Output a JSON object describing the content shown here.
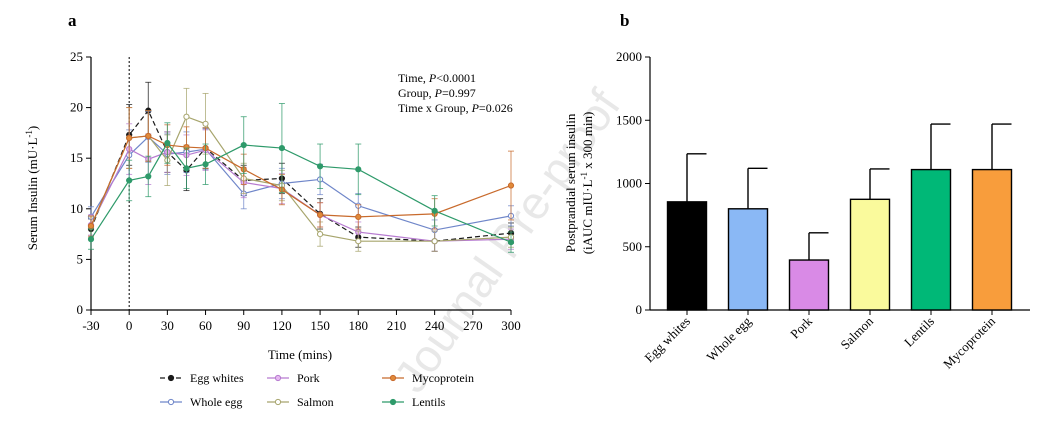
{
  "watermark": "Journal Pre-proof",
  "chart_data": [
    {
      "panel": "a",
      "type": "line",
      "xlabel": "Time (mins)",
      "ylabel": "Serum Insulin (mU·L-1)",
      "ylabel_main": "Serum Insulin (mU·L",
      "ylabel_sup": "-1",
      "ylabel_tail": ")",
      "xlim": [
        -30,
        300
      ],
      "ylim": [
        0,
        25
      ],
      "xticks": [
        "-30",
        "0",
        "30",
        "60",
        "90",
        "120",
        "150",
        "180",
        "210",
        "240",
        "270",
        "300"
      ],
      "yticks": [
        "0",
        "5",
        "10",
        "15",
        "20",
        "25"
      ],
      "vline_x": 0,
      "stats_lines": [
        {
          "pre": "Time, ",
          "ital": "P",
          "post": "<0.0001"
        },
        {
          "pre": "Group, ",
          "ital": "P",
          "post": "=0.997"
        },
        {
          "pre": "Time x Group, ",
          "ital": "P",
          "post": "=0.026"
        }
      ],
      "x": [
        -30,
        0,
        15,
        30,
        45,
        60,
        90,
        120,
        150,
        180,
        240,
        300
      ],
      "series": [
        {
          "name": "Egg whites",
          "color": "#1a1a1a",
          "fill": "#1a1a1a",
          "dash": "5,3",
          "values": [
            8.0,
            17.3,
            19.7,
            15.6,
            13.8,
            16.0,
            12.8,
            13.0,
            9.5,
            7.2,
            6.8,
            7.6
          ],
          "err": [
            1.0,
            3.0,
            2.8,
            2.0,
            2.0,
            2.0,
            1.5,
            1.5,
            1.5,
            1.0,
            1.0,
            1.0
          ]
        },
        {
          "name": "Whole egg",
          "color": "#6f86c9",
          "fill": "#ffffff",
          "dash": "",
          "values": [
            9.2,
            15.3,
            17.1,
            15.4,
            15.6,
            15.9,
            11.5,
            12.5,
            12.9,
            10.3,
            7.9,
            9.3
          ],
          "err": [
            1.0,
            2.5,
            2.5,
            2.0,
            2.0,
            2.0,
            1.5,
            1.5,
            1.5,
            1.2,
            1.0,
            1.0
          ]
        },
        {
          "name": "Pork",
          "color": "#b67ad0",
          "fill": "#e6b8f0",
          "dash": "",
          "values": [
            8.4,
            15.9,
            14.9,
            15.6,
            15.3,
            15.8,
            12.6,
            12.0,
            9.4,
            7.7,
            6.8,
            7.0
          ],
          "err": [
            1.0,
            2.5,
            2.5,
            2.0,
            2.0,
            2.0,
            1.5,
            1.5,
            1.2,
            1.0,
            1.0,
            1.0
          ]
        },
        {
          "name": "Salmon",
          "color": "#a7a56d",
          "fill": "#ffffff",
          "dash": "",
          "values": [
            8.2,
            17.0,
            17.2,
            14.8,
            19.1,
            18.4,
            13.0,
            12.3,
            7.5,
            6.8,
            6.8,
            7.2
          ],
          "err": [
            1.0,
            3.0,
            2.5,
            2.5,
            2.8,
            3.0,
            1.5,
            1.5,
            1.2,
            1.0,
            1.0,
            1.0
          ]
        },
        {
          "name": "Mycoprotein",
          "color": "#c86a2c",
          "fill": "#e08a3a",
          "dash": "",
          "values": [
            8.3,
            17.0,
            17.2,
            16.3,
            16.1,
            16.0,
            13.9,
            11.9,
            9.4,
            9.2,
            9.5,
            12.3
          ],
          "err": [
            1.0,
            3.0,
            2.5,
            2.0,
            2.0,
            2.0,
            1.5,
            1.5,
            1.2,
            1.2,
            1.5,
            3.4
          ]
        },
        {
          "name": "Lentils",
          "color": "#2e9a6a",
          "fill": "#2e9a6a",
          "dash": "",
          "values": [
            7.0,
            12.8,
            13.2,
            16.5,
            14.0,
            14.4,
            16.3,
            16.0,
            14.2,
            13.9,
            9.8,
            6.7
          ],
          "err": [
            1.0,
            2.0,
            2.0,
            2.0,
            2.0,
            2.0,
            2.8,
            4.4,
            2.2,
            2.5,
            1.5,
            1.0
          ]
        }
      ],
      "legend": {
        "rows": [
          [
            "Egg whites",
            "Pork",
            "Mycoprotein"
          ],
          [
            "Whole egg",
            "Salmon",
            "Lentils"
          ]
        ]
      }
    },
    {
      "panel": "b",
      "type": "bar",
      "ylabel_line1": "Postprandial serum insulin",
      "ylabel_line2_a": "(iAUC mIU·L",
      "ylabel_line2_sup": "-1",
      "ylabel_line2_b": " x 300 min)",
      "ylim": [
        0,
        2000
      ],
      "yticks": [
        "0",
        "500",
        "1000",
        "1500",
        "2000"
      ],
      "categories": [
        "Egg whites",
        "Whole egg",
        "Pork",
        "Salmon",
        "Lentils",
        "Mycoprotein"
      ],
      "values": [
        855,
        800,
        395,
        875,
        1110,
        1110
      ],
      "err": [
        380,
        320,
        215,
        240,
        360,
        360
      ],
      "colors": [
        "#000000",
        "#8ab8f5",
        "#d98ae6",
        "#fafa9c",
        "#00b877",
        "#f89d3c"
      ]
    }
  ]
}
